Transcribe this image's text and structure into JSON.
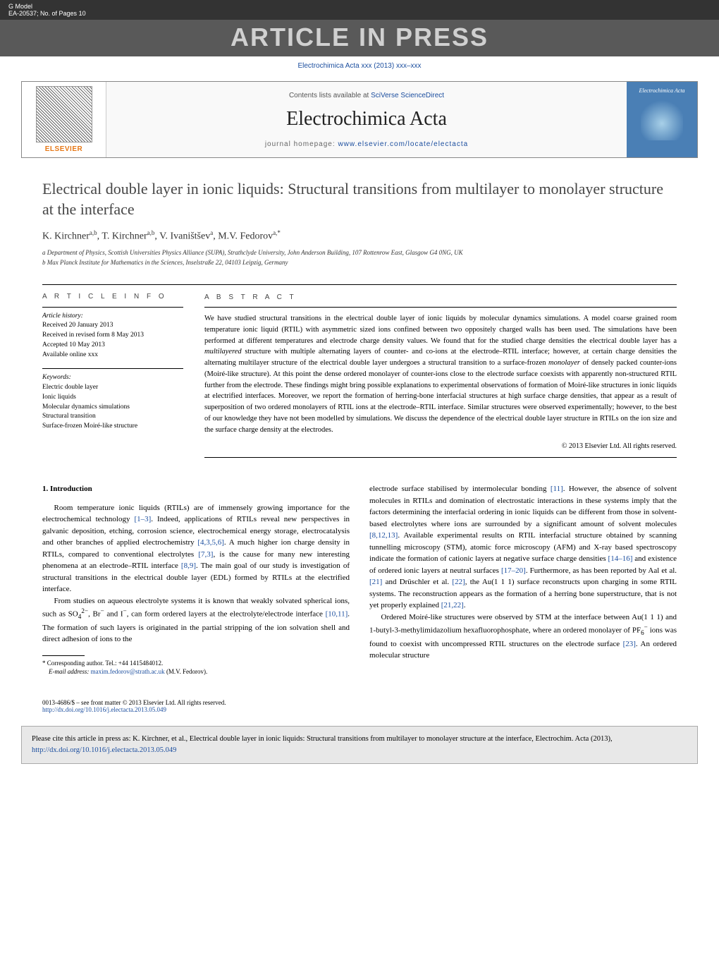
{
  "top_bar": {
    "gmodel": "G Model",
    "ref": "EA-20537;   No. of Pages 10"
  },
  "aip_label": "ARTICLE IN PRESS",
  "journal_ref": "Electrochimica Acta xxx (2013) xxx–xxx",
  "banner": {
    "contents_prefix": "Contents lists available at ",
    "contents_link": "SciVerse ScienceDirect",
    "journal_name": "Electrochimica Acta",
    "homepage_prefix": "journal homepage: ",
    "homepage_link": "www.elsevier.com/locate/electacta",
    "elsevier_label": "ELSEVIER",
    "cover_title": "Electrochimica Acta"
  },
  "title": "Electrical double layer in ionic liquids: Structural transitions from multilayer to monolayer structure at the interface",
  "authors_html": "K. Kirchner<sup>a,b</sup>, T. Kirchner<sup>a,b</sup>, V. Ivaništšev<sup>a</sup>, M.V. Fedorov<sup>a,*</sup>",
  "affiliations": [
    "a Department of Physics, Scottish Universities Physics Alliance (SUPA), Strathclyde University, John Anderson Building, 107 Rottenrow East, Glasgow G4 0NG, UK",
    "b Max Planck Institute for Mathematics in the Sciences, Inselstraße 22, 04103 Leipzig, Germany"
  ],
  "article_info": {
    "heading": "a r t i c l e   i n f o",
    "history_label": "Article history:",
    "history": [
      "Received 20 January 2013",
      "Received in revised form 8 May 2013",
      "Accepted 10 May 2013",
      "Available online xxx"
    ],
    "keywords_label": "Keywords:",
    "keywords": [
      "Electric double layer",
      "Ionic liquids",
      "Molecular dynamics simulations",
      "Structural transition",
      "Surface-frozen Moiré-like structure"
    ]
  },
  "abstract": {
    "heading": "a b s t r a c t",
    "text_html": "We have studied structural transitions in the electrical double layer of ionic liquids by molecular dynamics simulations. A model coarse grained room temperature ionic liquid (RTIL) with asymmetric sized ions confined between two oppositely charged walls has been used. The simulations have been performed at different temperatures and electrode charge density values. We found that for the studied charge densities the electrical double layer has a <em>multilayered</em> structure with multiple alternating layers of counter- and co-ions at the electrode–RTIL interface; however, at certain charge densities the alternating multilayer structure of the electrical double layer undergoes a structural transition to a surface-frozen <em>monolayer</em> of densely packed counter-ions (Moiré-like structure). At this point the dense ordered monolayer of counter-ions close to the electrode surface coexists with apparently non-structured RTIL further from the electrode. These findings might bring possible explanations to experimental observations of formation of Moiré-like structures in ionic liquids at electrified interfaces. Moreover, we report the formation of herring-bone interfacial structures at high surface charge densities, that appear as a result of superposition of two ordered monolayers of RTIL ions at the electrode–RTIL interface. Similar structures were observed experimentally; however, to the best of our knowledge they have not been modelled by simulations. We discuss the dependence of the electrical double layer structure in RTILs on the ion size and the surface charge density at the electrodes.",
    "copyright": "© 2013 Elsevier Ltd. All rights reserved."
  },
  "intro": {
    "heading": "1.  Introduction",
    "p1_html": "Room temperature ionic liquids (RTILs) are of immensely growing importance for the electrochemical technology <a href='#'>[1–3]</a>. Indeed, applications of RTILs reveal new perspectives in galvanic deposition, etching, corrosion science, electrochemical energy storage, electrocatalysis and other branches of applied electrochemistry <a href='#'>[4,3,5,6]</a>. A much higher ion charge density in RTILs, compared to conventional electrolytes <a href='#'>[7,3]</a>, is the cause for many new interesting phenomena at an electrode–RTIL interface <a href='#'>[8,9]</a>. The main goal of our study is investigation of structural transitions in the electrical double layer (EDL) formed by RTILs at the electrified interface.",
    "p2_html": "From studies on aqueous electrolyte systems it is known that weakly solvated spherical ions, such as SO<sub>4</sub><sup>2−</sup>, Br<sup>−</sup> and I<sup>−</sup>, can form ordered layers at the electrolyte/electrode interface <a href='#'>[10,11]</a>. The formation of such layers is originated in the partial stripping of the ion solvation shell and direct adhesion of ions to the",
    "p3_html": "electrode surface stabilised by intermolecular bonding <a href='#'>[11]</a>. However, the absence of solvent molecules in RTILs and domination of electrostatic interactions in these systems imply that the factors determining the interfacial ordering in ionic liquids can be different from those in solvent-based electrolytes where ions are surrounded by a significant amount of solvent molecules <a href='#'>[8,12,13]</a>. Available experimental results on RTIL interfacial structure obtained by scanning tunnelling microscopy (STM), atomic force microscopy (AFM) and X-ray based spectroscopy indicate the formation of cationic layers at negative surface charge densities <a href='#'>[14–16]</a> and existence of ordered ionic layers at neutral surfaces <a href='#'>[17–20]</a>. Furthermore, as has been reported by Aal et al. <a href='#'>[21]</a> and Drüschler et al. <a href='#'>[22]</a>, the Au(1 1 1) surface reconstructs upon charging in some RTIL systems. The reconstruction appears as the formation of a herring bone superstructure, that is not yet properly explained <a href='#'>[21,22]</a>.",
    "p4_html": "Ordered Moiré-like structures were observed by STM at the interface between Au(1 1 1) and 1-butyl-3-methylimidazolium hexafluorophosphate, where an ordered monolayer of PF<sub>6</sub><sup>−</sup> ions was found to coexist with uncompressed RTIL structures on the electrode surface <a href='#'>[23]</a>. An ordered molecular structure"
  },
  "footnote": {
    "corresponding": "* Corresponding author. Tel.: +44 1415484012.",
    "email_label": "E-mail address: ",
    "email": "maxim.fedorov@strath.ac.uk",
    "email_who": " (M.V. Fedorov)."
  },
  "issn": {
    "line": "0013-4686/$ – see front matter © 2013 Elsevier Ltd. All rights reserved.",
    "doi": "http://dx.doi.org/10.1016/j.electacta.2013.05.049"
  },
  "cite_box": {
    "text_prefix": "Please cite this article in press as: K. Kirchner, et al., Electrical double layer in ionic liquids: Structural transitions from multilayer to monolayer structure at the interface, Electrochim. Acta (2013), ",
    "doi": "http://dx.doi.org/10.1016/j.electacta.2013.05.049"
  },
  "colors": {
    "link": "#1a4d9e",
    "topbar_bg": "#333333",
    "aip_bg": "#595959",
    "aip_fg": "#d0d0d0",
    "elsevier_orange": "#e67817",
    "cover_bg": "#4a7fb5",
    "citebox_bg": "#e8e8e8"
  }
}
